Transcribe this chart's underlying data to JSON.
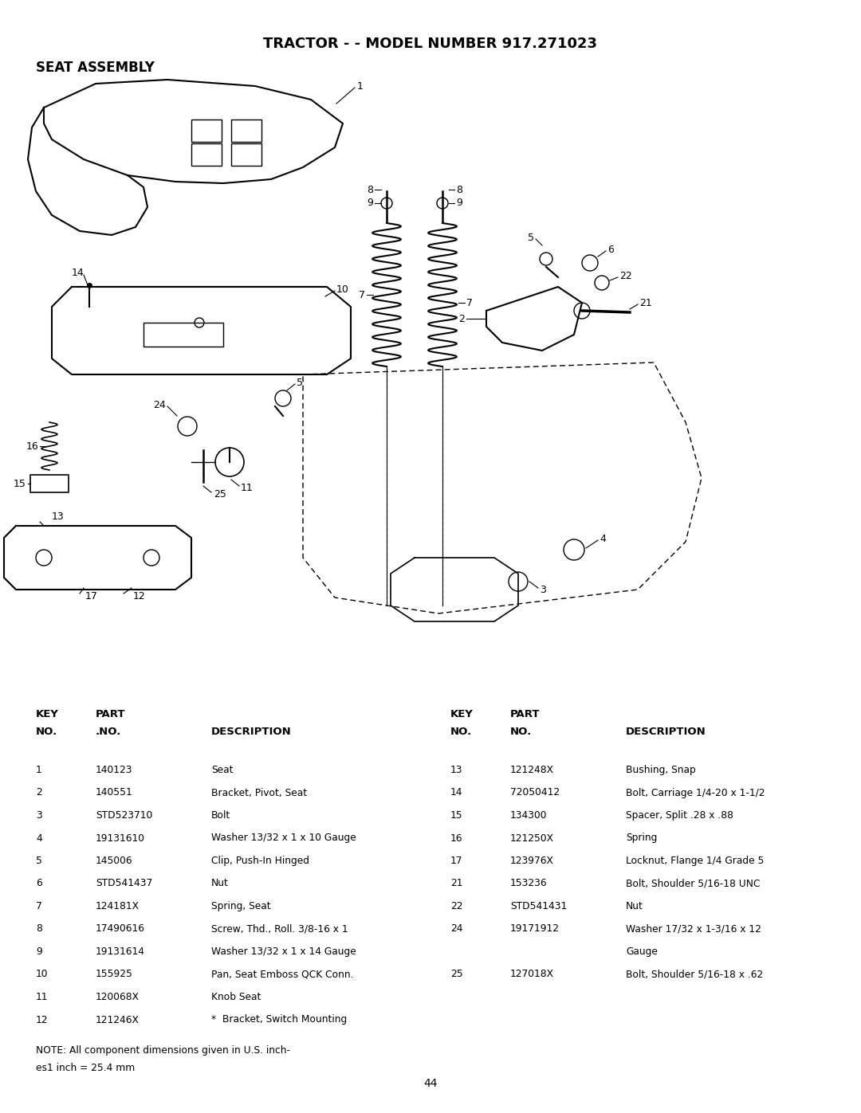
{
  "title": "TRACTOR - - MODEL NUMBER 917.271023",
  "subtitle": "SEAT ASSEMBLY",
  "page_number": "44",
  "background_color": "#ffffff",
  "parts_left": [
    [
      "1",
      "140123",
      "Seat"
    ],
    [
      "2",
      "140551",
      "Bracket, Pivot, Seat"
    ],
    [
      "3",
      "STD523710",
      "Bolt"
    ],
    [
      "4",
      "19131610",
      "Washer 13/32 x 1 x 10 Gauge"
    ],
    [
      "5",
      "145006",
      "Clip, Push-In Hinged"
    ],
    [
      "6",
      "STD541437",
      "Nut"
    ],
    [
      "7",
      "124181X",
      "Spring, Seat"
    ],
    [
      "8",
      "17490616",
      "Screw, Thd., Roll. 3/8-16 x 1"
    ],
    [
      "9",
      "19131614",
      "Washer 13/32 x 1 x 14 Gauge"
    ],
    [
      "10",
      "155925",
      "Pan, Seat Emboss QCK Conn."
    ],
    [
      "11",
      "120068X",
      "Knob Seat"
    ],
    [
      "12",
      "121246X",
      "*  Bracket, Switch Mounting"
    ]
  ],
  "parts_right": [
    [
      "13",
      "121248X",
      "Bushing, Snap"
    ],
    [
      "14",
      "72050412",
      "Bolt, Carriage 1/4-20 x 1-1/2"
    ],
    [
      "15",
      "134300",
      "Spacer, Split .28 x .88"
    ],
    [
      "16",
      "121250X",
      "Spring"
    ],
    [
      "17",
      "123976X",
      "Locknut, Flange 1/4 Grade 5"
    ],
    [
      "21",
      "153236",
      "Bolt, Shoulder 5/16-18 UNC"
    ],
    [
      "22",
      "STD541431",
      "Nut"
    ],
    [
      "24",
      "19171912",
      "Washer 17/32 x 1-3/16 x 12"
    ],
    [
      "",
      "",
      "Gauge"
    ],
    [
      "25",
      "127018X",
      "Bolt, Shoulder 5/16-18 x .62"
    ]
  ],
  "note_line1": "NOTE: All component dimensions given in U.S. inch-",
  "note_line2": "es1 inch = 25.4 mm"
}
